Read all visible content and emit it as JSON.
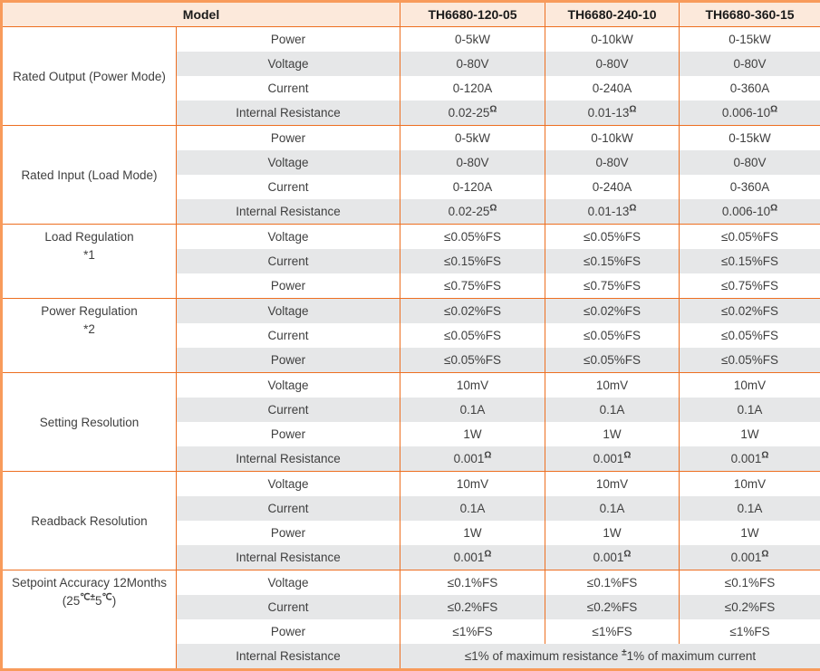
{
  "table": {
    "header": {
      "model_label": "Model",
      "model_columns": [
        "TH6680-120-05",
        "TH6680-240-10",
        "TH6680-360-15"
      ]
    },
    "groups": [
      {
        "label_lines": [
          "Rated Output (Power Mode)"
        ],
        "rows": [
          {
            "param": "Power",
            "values": [
              "0-5kW",
              "0-10kW",
              "0-15kW"
            ]
          },
          {
            "param": "Voltage",
            "values": [
              "0-80V",
              "0-80V",
              "0-80V"
            ]
          },
          {
            "param": "Current",
            "values": [
              "0-120A",
              "0-240A",
              "0-360A"
            ]
          },
          {
            "param": "Internal Resistance",
            "values": [
              "0.02-25^{Ω}",
              "0.01-13^{Ω}",
              "0.006-10^{Ω}"
            ]
          }
        ]
      },
      {
        "label_lines": [
          "Rated Input (Load Mode)"
        ],
        "rows": [
          {
            "param": "Power",
            "values": [
              "0-5kW",
              "0-10kW",
              "0-15kW"
            ]
          },
          {
            "param": "Voltage",
            "values": [
              "0-80V",
              "0-80V",
              "0-80V"
            ]
          },
          {
            "param": "Current",
            "values": [
              "0-120A",
              "0-240A",
              "0-360A"
            ]
          },
          {
            "param": "Internal Resistance",
            "values": [
              "0.02-25^{Ω}",
              "0.01-13^{Ω}",
              "0.006-10^{Ω}"
            ]
          }
        ]
      },
      {
        "label_lines": [
          "Load Regulation",
          "*1"
        ],
        "rows": [
          {
            "param": "Voltage",
            "values": [
              "≤0.05%FS",
              "≤0.05%FS",
              "≤0.05%FS"
            ]
          },
          {
            "param": "Current",
            "values": [
              "≤0.15%FS",
              "≤0.15%FS",
              "≤0.15%FS"
            ]
          },
          {
            "param": "Power",
            "values": [
              "≤0.75%FS",
              "≤0.75%FS",
              "≤0.75%FS"
            ]
          }
        ]
      },
      {
        "label_lines": [
          "Power Regulation",
          "*2"
        ],
        "rows": [
          {
            "param": "Voltage",
            "values": [
              "≤0.02%FS",
              "≤0.02%FS",
              "≤0.02%FS"
            ]
          },
          {
            "param": "Current",
            "values": [
              "≤0.05%FS",
              "≤0.05%FS",
              "≤0.05%FS"
            ]
          },
          {
            "param": "Power",
            "values": [
              "≤0.05%FS",
              "≤0.05%FS",
              "≤0.05%FS"
            ]
          }
        ]
      },
      {
        "label_lines": [
          "Setting Resolution"
        ],
        "rows": [
          {
            "param": "Voltage",
            "values": [
              "10mV",
              "10mV",
              "10mV"
            ]
          },
          {
            "param": "Current",
            "values": [
              "0.1A",
              "0.1A",
              "0.1A"
            ]
          },
          {
            "param": "Power",
            "values": [
              "1W",
              "1W",
              "1W"
            ]
          },
          {
            "param": "Internal Resistance",
            "values": [
              "0.001^{Ω}",
              "0.001^{Ω}",
              "0.001^{Ω}"
            ]
          }
        ]
      },
      {
        "label_lines": [
          "Readback Resolution"
        ],
        "rows": [
          {
            "param": "Voltage",
            "values": [
              "10mV",
              "10mV",
              "10mV"
            ]
          },
          {
            "param": "Current",
            "values": [
              "0.1A",
              "0.1A",
              "0.1A"
            ]
          },
          {
            "param": "Power",
            "values": [
              "1W",
              "1W",
              "1W"
            ]
          },
          {
            "param": "Internal Resistance",
            "values": [
              "0.001^{Ω}",
              "0.001^{Ω}",
              "0.001^{Ω}"
            ]
          }
        ]
      },
      {
        "label_lines": [
          "Setpoint Accuracy 12Months",
          "(25^{℃±}5^{℃})"
        ],
        "rows": [
          {
            "param": "Voltage",
            "values": [
              "≤0.1%FS",
              "≤0.1%FS",
              "≤0.1%FS"
            ]
          },
          {
            "param": "Current",
            "values": [
              "≤0.2%FS",
              "≤0.2%FS",
              "≤0.2%FS"
            ]
          },
          {
            "param": "Power",
            "values": [
              "≤1%FS",
              "≤1%FS",
              "≤1%FS"
            ]
          },
          {
            "param": "Internal Resistance",
            "values": [
              "≤1% of maximum resistance ^{±}1% of maximum current"
            ]
          }
        ]
      }
    ]
  },
  "colors": {
    "header_fill": "#FCE9DB",
    "row_alt_fill": "#E6E7E8",
    "border_outer": "#F89B5B",
    "border_inner": "#ED6F21",
    "text": "#3F3F3F"
  }
}
